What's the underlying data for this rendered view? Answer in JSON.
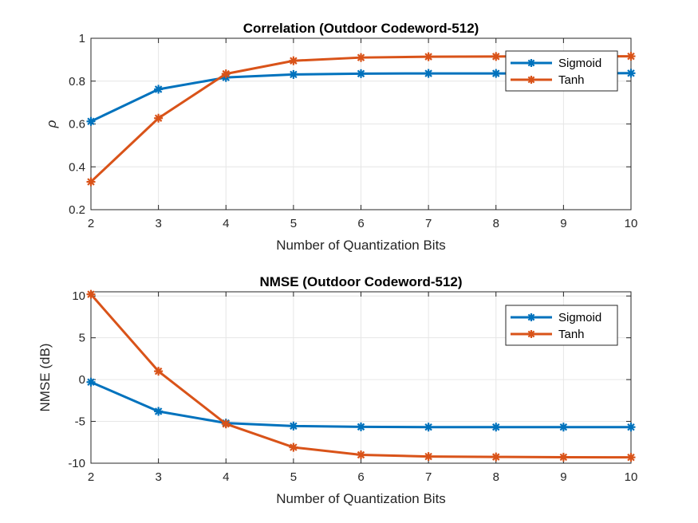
{
  "chart_data": [
    {
      "type": "line",
      "title": "Correlation (Outdoor Codeword-512)",
      "xlabel": "Number of Quantization Bits",
      "ylabel": "ρ",
      "x": [
        2,
        3,
        4,
        5,
        6,
        7,
        8,
        9,
        10
      ],
      "xlim": [
        2,
        10
      ],
      "ylim": [
        0.2,
        1
      ],
      "xticks": [
        2,
        3,
        4,
        5,
        6,
        7,
        8,
        9,
        10
      ],
      "yticks": [
        0.2,
        0.4,
        0.6,
        0.8,
        1
      ],
      "ytick_labels": [
        "0.2",
        "0.4",
        "0.6",
        "0.8",
        "1"
      ],
      "grid": true,
      "legend_position": "top-right",
      "series": [
        {
          "name": "Sigmoid",
          "color": "#0072BD",
          "marker": "asterisk",
          "values": [
            0.612,
            0.762,
            0.817,
            0.831,
            0.835,
            0.836,
            0.836,
            0.836,
            0.837
          ]
        },
        {
          "name": "Tanh",
          "color": "#D95319",
          "marker": "asterisk",
          "values": [
            0.33,
            0.627,
            0.834,
            0.895,
            0.91,
            0.914,
            0.915,
            0.916,
            0.916
          ]
        }
      ]
    },
    {
      "type": "line",
      "title": "NMSE (Outdoor Codeword-512)",
      "xlabel": "Number of Quantization Bits",
      "ylabel": "NMSE (dB)",
      "x": [
        2,
        3,
        4,
        5,
        6,
        7,
        8,
        9,
        10
      ],
      "xlim": [
        2,
        10
      ],
      "ylim": [
        -10,
        10.5
      ],
      "xticks": [
        2,
        3,
        4,
        5,
        6,
        7,
        8,
        9,
        10
      ],
      "yticks": [
        -10,
        -5,
        0,
        5,
        10
      ],
      "ytick_labels": [
        "-10",
        "-5",
        "0",
        "5",
        "10"
      ],
      "grid": true,
      "legend_position": "top-right",
      "series": [
        {
          "name": "Sigmoid",
          "color": "#0072BD",
          "marker": "asterisk",
          "values": [
            -0.3,
            -3.8,
            -5.2,
            -5.55,
            -5.65,
            -5.68,
            -5.68,
            -5.68,
            -5.68
          ]
        },
        {
          "name": "Tanh",
          "color": "#D95319",
          "marker": "asterisk",
          "values": [
            10.2,
            1.0,
            -5.3,
            -8.1,
            -9.0,
            -9.2,
            -9.25,
            -9.28,
            -9.3
          ]
        }
      ]
    }
  ]
}
